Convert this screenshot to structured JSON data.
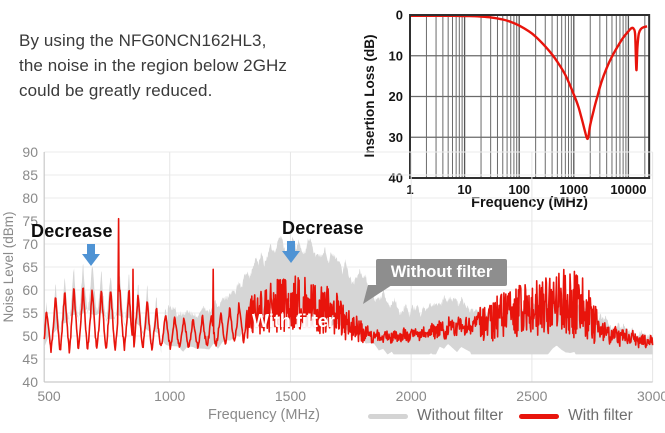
{
  "intro": {
    "lines": [
      "By using the NFG0NCN162HL3,",
      "the noise in the region below 2GHz",
      "could be greatly reduced."
    ]
  },
  "annotations": {
    "decrease_left": "Decrease",
    "decrease_mid": "Decrease",
    "with_filter_label": "With filter",
    "without_filter_callout": "Without filter"
  },
  "legend": [
    {
      "label": "Without filter",
      "color": "#d4d4d4"
    },
    {
      "label": "With filter",
      "color": "#e8140c"
    }
  ],
  "colors": {
    "trace_red": "#e8140c",
    "trace_gray": "#d6d6d6",
    "arrow_blue": "#4f93d4",
    "callout_gray": "#8e8e8e",
    "axis_text": "#8a8a8a",
    "inset_text": "#141414",
    "grid_light": "#ebebeb",
    "grid_dark": "#6a6a6a"
  },
  "chart_data": [
    {
      "id": "insertion-loss",
      "type": "line",
      "xscale": "log",
      "xlabel": "Frequency (MHz)",
      "ylabel": "Insertion Loss (dB)",
      "xlim": [
        1,
        24000
      ],
      "ylim": [
        0,
        40
      ],
      "y_inverted": true,
      "xticks": [
        1,
        10,
        100,
        1000,
        10000
      ],
      "yticks": [
        0,
        10,
        20,
        30,
        40
      ],
      "grid": "log-minor",
      "series": [
        {
          "name": "Insertion loss",
          "color": "#e8140c",
          "points": [
            [
              1,
              0.2
            ],
            [
              3,
              0.2
            ],
            [
              6,
              0.2
            ],
            [
              10,
              0.25
            ],
            [
              15,
              0.3
            ],
            [
              20,
              0.4
            ],
            [
              30,
              0.6
            ],
            [
              50,
              1.1
            ],
            [
              70,
              1.7
            ],
            [
              100,
              2.6
            ],
            [
              150,
              4.0
            ],
            [
              200,
              5.3
            ],
            [
              300,
              7.7
            ],
            [
              400,
              9.7
            ],
            [
              500,
              11.5
            ],
            [
              700,
              14.7
            ],
            [
              1000,
              19.5
            ],
            [
              1200,
              22.3
            ],
            [
              1400,
              25.5
            ],
            [
              1600,
              28.5
            ],
            [
              1750,
              30.3
            ],
            [
              1850,
              29.8
            ],
            [
              2000,
              27.0
            ],
            [
              2300,
              23.5
            ],
            [
              2700,
              20.0
            ],
            [
              3200,
              16.5
            ],
            [
              4000,
              13.0
            ],
            [
              5000,
              10.2
            ],
            [
              6500,
              7.5
            ],
            [
              8000,
              5.6
            ],
            [
              10000,
              4.0
            ],
            [
              11500,
              3.2
            ],
            [
              12500,
              3.4
            ],
            [
              13300,
              5.0
            ],
            [
              14000,
              13.5
            ],
            [
              14600,
              8.0
            ],
            [
              15500,
              4.6
            ],
            [
              17000,
              3.4
            ],
            [
              19000,
              3.0
            ],
            [
              22000,
              2.8
            ]
          ]
        }
      ]
    },
    {
      "id": "noise-level",
      "type": "line",
      "xlabel": "Frequency (MHz)",
      "ylabel": "Noise Level (dBm)",
      "xlim": [
        480,
        3000
      ],
      "ylim": [
        40,
        90
      ],
      "xticks": [
        500,
        1000,
        1500,
        2000,
        2500,
        3000
      ],
      "yticks": [
        40,
        45,
        50,
        55,
        60,
        65,
        70,
        75,
        80,
        85,
        90
      ],
      "series": [
        {
          "name": "Without filter",
          "color": "#d6d6d6",
          "style": "area",
          "envelope_top": [
            [
              480,
              57
            ],
            [
              500,
              60
            ],
            [
              540,
              62
            ],
            [
              580,
              64
            ],
            [
              620,
              65.5
            ],
            [
              660,
              66.5
            ],
            [
              700,
              66
            ],
            [
              740,
              64.5
            ],
            [
              780,
              65
            ],
            [
              820,
              63.5
            ],
            [
              860,
              63
            ],
            [
              900,
              61.5
            ],
            [
              950,
              59.5
            ],
            [
              1000,
              56
            ],
            [
              1050,
              54.5
            ],
            [
              1100,
              54.5
            ],
            [
              1150,
              55.5
            ],
            [
              1200,
              57
            ],
            [
              1250,
              59
            ],
            [
              1300,
              62
            ],
            [
              1350,
              65.5
            ],
            [
              1400,
              67.5
            ],
            [
              1450,
              69.5
            ],
            [
              1500,
              71
            ],
            [
              1540,
              70.5
            ],
            [
              1580,
              69.5
            ],
            [
              1620,
              68.5
            ],
            [
              1660,
              67
            ],
            [
              1700,
              66
            ],
            [
              1750,
              64
            ],
            [
              1800,
              62
            ],
            [
              1850,
              59.5
            ],
            [
              1900,
              57.5
            ],
            [
              1950,
              56
            ],
            [
              2000,
              55
            ],
            [
              2050,
              55.5
            ],
            [
              2100,
              56.5
            ],
            [
              2150,
              58
            ],
            [
              2200,
              57.5
            ],
            [
              2250,
              56
            ],
            [
              2300,
              55
            ],
            [
              2350,
              55
            ],
            [
              2400,
              55.5
            ],
            [
              2450,
              56
            ],
            [
              2500,
              56.5
            ],
            [
              2550,
              57
            ],
            [
              2600,
              58
            ],
            [
              2650,
              57.5
            ],
            [
              2700,
              56.5
            ],
            [
              2750,
              55
            ],
            [
              2800,
              53.5
            ],
            [
              2850,
              52
            ],
            [
              2900,
              51
            ],
            [
              2950,
              50.5
            ],
            [
              3000,
              50
            ]
          ],
          "thickness": [
            [
              480,
              10
            ],
            [
              700,
              11
            ],
            [
              950,
              9
            ],
            [
              1100,
              7
            ],
            [
              1300,
              11
            ],
            [
              1600,
              15
            ],
            [
              1900,
              11
            ],
            [
              2100,
              10
            ],
            [
              2400,
              11
            ],
            [
              2700,
              11
            ],
            [
              3000,
              6
            ]
          ],
          "comb": {
            "range": [
              480,
              990
            ],
            "period": 38,
            "phase": 508,
            "depth": 11
          },
          "jitter_regions": [
            {
              "range": [
                1300,
                2050
              ],
              "amp": 2.2
            }
          ],
          "jitter_default": 1.1
        },
        {
          "name": "With filter",
          "color": "#e8140c",
          "style": "line",
          "envelope_top": [
            [
              480,
              53
            ],
            [
              500,
              59
            ],
            [
              560,
              60
            ],
            [
              620,
              61
            ],
            [
              660,
              61
            ],
            [
              700,
              60
            ],
            [
              760,
              61
            ],
            [
              840,
              60
            ],
            [
              900,
              58
            ],
            [
              950,
              56
            ],
            [
              1000,
              54.5
            ],
            [
              1100,
              54
            ],
            [
              1200,
              55
            ],
            [
              1300,
              57.5
            ],
            [
              1320,
              58
            ],
            [
              1400,
              61.5
            ],
            [
              1450,
              62.5
            ],
            [
              1500,
              63.5
            ],
            [
              1550,
              63
            ],
            [
              1600,
              62
            ],
            [
              1650,
              61
            ],
            [
              1700,
              59
            ],
            [
              1750,
              56
            ],
            [
              1800,
              53
            ],
            [
              1850,
              51.5
            ],
            [
              1900,
              51.5
            ],
            [
              2000,
              52
            ],
            [
              2100,
              53.5
            ],
            [
              2150,
              55
            ],
            [
              2200,
              54.5
            ],
            [
              2280,
              56
            ],
            [
              2350,
              58.5
            ],
            [
              2400,
              60
            ],
            [
              2500,
              62
            ],
            [
              2550,
              62.5
            ],
            [
              2600,
              64
            ],
            [
              2650,
              65
            ],
            [
              2700,
              63.5
            ],
            [
              2760,
              58
            ],
            [
              2800,
              53.5
            ],
            [
              2850,
              52.5
            ],
            [
              2900,
              52.5
            ],
            [
              2950,
              51
            ],
            [
              3000,
              50.5
            ]
          ],
          "envelope_bottom": [
            [
              480,
              45.8
            ],
            [
              600,
              46
            ],
            [
              800,
              46.5
            ],
            [
              1000,
              47
            ],
            [
              1200,
              47.5
            ],
            [
              1320,
              48.5
            ],
            [
              1400,
              49.5
            ],
            [
              1500,
              50
            ],
            [
              1600,
              49.5
            ],
            [
              1700,
              48.5
            ],
            [
              1800,
              47.8
            ],
            [
              1900,
              47.5
            ],
            [
              2100,
              47.8
            ],
            [
              2300,
              48
            ],
            [
              2500,
              48.5
            ],
            [
              2650,
              48.5
            ],
            [
              2760,
              47.5
            ],
            [
              2800,
              47
            ],
            [
              2900,
              46.5
            ],
            [
              3000,
              46
            ]
          ],
          "comb": {
            "range": [
              480,
              1320
            ],
            "period": 38,
            "phase": 508
          },
          "dense_ranges": [
            [
              1320,
              1800
            ],
            [
              2280,
              2760
            ]
          ],
          "spikes": [
            [
              788,
              75.5
            ],
            [
              848,
              64.5
            ],
            [
              1180,
              64.5
            ]
          ]
        }
      ]
    }
  ]
}
